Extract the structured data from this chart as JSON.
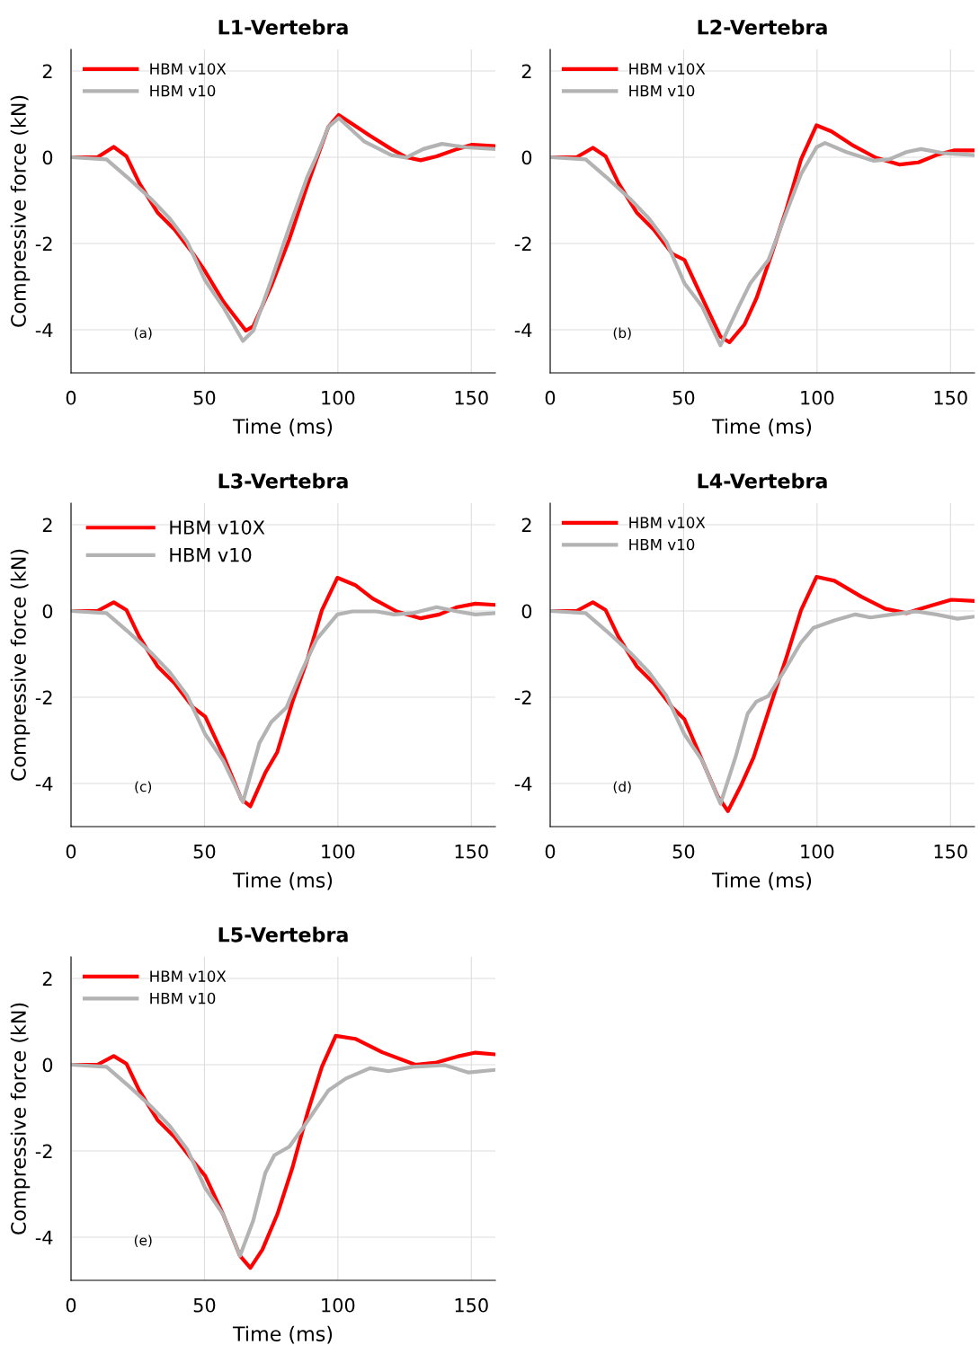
{
  "chart_data": [
    {
      "type": "line",
      "title": "L1-Vertebra",
      "xlabel": "Time (ms)",
      "ylabel": "Compressive force (kN)",
      "xlim": [
        0,
        159
      ],
      "ylim": [
        -5,
        2.5
      ],
      "xticks": [
        0,
        50,
        100,
        150
      ],
      "yticks": [
        -4,
        -2,
        0,
        2
      ],
      "grid": true,
      "legend": "top left",
      "annotations": [
        "(a)"
      ],
      "series": [
        {
          "name": "HBM v10X",
          "color": "#ff0000",
          "x": [
            0,
            9.9,
            16,
            20.8,
            25.6,
            32.4,
            39,
            45.8,
            50.3,
            57,
            65.5,
            68.3,
            75,
            81.8,
            88.5,
            92,
            96.4,
            100.3,
            105.4,
            112,
            120,
            125.6,
            131,
            137,
            144.7,
            150.3,
            159
          ],
          "values": [
            0,
            0,
            0.24,
            0.02,
            -0.6,
            -1.28,
            -1.69,
            -2.24,
            -2.65,
            -3.34,
            -4.02,
            -3.92,
            -2.99,
            -1.9,
            -0.66,
            -0.05,
            0.7,
            0.98,
            0.77,
            0.5,
            0.19,
            0,
            -0.07,
            0.02,
            0.19,
            0.29,
            0.26
          ]
        },
        {
          "name": "HBM v10",
          "color": "#b3b3b3",
          "x": [
            0,
            13.3,
            21,
            30,
            37,
            43.6,
            50.3,
            57,
            64.4,
            68.3,
            75,
            81.8,
            88.5,
            92,
            96.4,
            100.3,
            110,
            120,
            125.6,
            132,
            139,
            148,
            159
          ],
          "values": [
            0,
            -0.05,
            -0.46,
            -0.97,
            -1.42,
            -1.97,
            -2.86,
            -3.47,
            -4.26,
            -4.02,
            -2.86,
            -1.62,
            -0.46,
            0.02,
            0.7,
            0.91,
            0.36,
            0.05,
            -0.01,
            0.19,
            0.31,
            0.23,
            0.19
          ]
        }
      ]
    },
    {
      "type": "line",
      "title": "L2-Vertebra",
      "xlabel": "Time (ms)",
      "xlim": [
        0,
        159
      ],
      "ylim": [
        -5,
        2.5
      ],
      "xticks": [
        0,
        50,
        100,
        150
      ],
      "yticks": [
        -4,
        -2,
        0,
        2
      ],
      "grid": true,
      "legend": "top left",
      "annotations": [
        "(b)"
      ],
      "series": [
        {
          "name": "HBM v10X",
          "color": "#ff0000",
          "x": [
            0,
            9.9,
            16,
            20.8,
            25.6,
            32.4,
            39,
            45.8,
            50.3,
            57,
            63.8,
            67.2,
            72.8,
            77.3,
            83,
            88.5,
            94,
            99.8,
            105.4,
            113,
            122,
            131,
            138,
            144.7,
            151.5,
            159
          ],
          "values": [
            0,
            0,
            0.22,
            0.02,
            -0.6,
            -1.28,
            -1.69,
            -2.24,
            -2.38,
            -3.27,
            -4.16,
            -4.29,
            -3.88,
            -3.27,
            -2.24,
            -1.21,
            -0.05,
            0.74,
            0.6,
            0.29,
            -0.01,
            -0.17,
            -0.12,
            0.05,
            0.16,
            0.16
          ]
        },
        {
          "name": "HBM v10",
          "color": "#b3b3b3",
          "x": [
            0,
            13.3,
            21,
            30,
            37,
            43.6,
            50.3,
            57,
            63.8,
            70.6,
            75,
            81.8,
            88.5,
            94,
            99.8,
            103,
            111,
            121,
            127,
            133.5,
            139,
            148,
            159
          ],
          "values": [
            0,
            -0.05,
            -0.46,
            -0.97,
            -1.42,
            -1.97,
            -2.92,
            -3.47,
            -4.36,
            -3.47,
            -2.92,
            -2.38,
            -1.28,
            -0.39,
            0.23,
            0.33,
            0.12,
            -0.08,
            -0.05,
            0.12,
            0.19,
            0.09,
            0.05
          ]
        }
      ]
    },
    {
      "type": "line",
      "title": "L3-Vertebra",
      "xlabel": "Time (ms)",
      "ylabel": "Compressive force (kN)",
      "xlim": [
        0,
        159
      ],
      "ylim": [
        -5,
        2.5
      ],
      "xticks": [
        0,
        50,
        100,
        150
      ],
      "yticks": [
        -4,
        -2,
        0,
        2
      ],
      "grid": true,
      "legend": "top left",
      "annotations": [
        "(c)"
      ],
      "series": [
        {
          "name": "HBM v10X",
          "color": "#ff0000",
          "x": [
            0,
            9.9,
            16,
            20.8,
            25.6,
            32.4,
            39,
            45.8,
            50.3,
            57,
            63.8,
            67.2,
            72.8,
            77.3,
            83,
            88.5,
            94,
            99.8,
            106.5,
            113,
            122,
            131,
            138,
            144.7,
            151.5,
            159
          ],
          "values": [
            0,
            0,
            0.2,
            0.02,
            -0.6,
            -1.28,
            -1.69,
            -2.24,
            -2.45,
            -3.34,
            -4.36,
            -4.53,
            -3.75,
            -3.27,
            -2.1,
            -1.14,
            0.02,
            0.77,
            0.6,
            0.29,
            -0.01,
            -0.17,
            -0.08,
            0.09,
            0.17,
            0.14
          ]
        },
        {
          "name": "HBM v10",
          "color": "#b3b3b3",
          "x": [
            0,
            13.3,
            21,
            30,
            37,
            43.6,
            50.3,
            57,
            64.4,
            70.6,
            75,
            80.7,
            86.3,
            92,
            99.8,
            105.4,
            114.4,
            121,
            128,
            137,
            144.7,
            151.5,
            159
          ],
          "values": [
            0,
            -0.05,
            -0.46,
            -0.97,
            -1.42,
            -1.97,
            -2.86,
            -3.47,
            -4.43,
            -3.06,
            -2.58,
            -2.24,
            -1.42,
            -0.66,
            -0.08,
            -0.01,
            -0.01,
            -0.08,
            -0.05,
            0.09,
            -0.01,
            -0.08,
            -0.05
          ]
        }
      ]
    },
    {
      "type": "line",
      "title": "L4-Vertebra",
      "xlabel": "Time (ms)",
      "xlim": [
        0,
        159
      ],
      "ylim": [
        -5,
        2.5
      ],
      "xticks": [
        0,
        50,
        100,
        150
      ],
      "yticks": [
        -4,
        -2,
        0,
        2
      ],
      "grid": true,
      "legend": "top left",
      "annotations": [
        "(d)"
      ],
      "series": [
        {
          "name": "HBM v10X",
          "color": "#ff0000",
          "x": [
            0,
            9.9,
            16,
            20.8,
            25.6,
            32.4,
            39,
            45.8,
            50.3,
            57,
            62.7,
            66.6,
            71.7,
            76.2,
            83,
            88.5,
            94,
            99.8,
            106.5,
            116.6,
            125.6,
            133.5,
            142.5,
            150.3,
            159
          ],
          "values": [
            0,
            0,
            0.2,
            0.02,
            -0.6,
            -1.28,
            -1.69,
            -2.24,
            -2.51,
            -3.47,
            -4.29,
            -4.64,
            -4.02,
            -3.4,
            -2.1,
            -1.08,
            0.02,
            0.79,
            0.7,
            0.33,
            0.05,
            -0.05,
            0.12,
            0.26,
            0.23
          ]
        },
        {
          "name": "HBM v10",
          "color": "#b3b3b3",
          "x": [
            0,
            13.3,
            21,
            30,
            37,
            43.6,
            50.3,
            57,
            63.8,
            69.4,
            74,
            77.3,
            81.8,
            87.4,
            94,
            98.7,
            106.5,
            114.4,
            120,
            128,
            137,
            144.7,
            152.6,
            159
          ],
          "values": [
            0,
            -0.05,
            -0.46,
            -0.97,
            -1.42,
            -1.97,
            -2.86,
            -3.47,
            -4.47,
            -3.4,
            -2.38,
            -2.1,
            -1.97,
            -1.42,
            -0.73,
            -0.39,
            -0.22,
            -0.08,
            -0.15,
            -0.08,
            -0.01,
            -0.08,
            -0.18,
            -0.13
          ]
        }
      ]
    },
    {
      "type": "line",
      "title": "L5-Vertebra",
      "xlabel": "Time (ms)",
      "ylabel": "Compressive force (kN)",
      "xlim": [
        0,
        159
      ],
      "ylim": [
        -5,
        2.5
      ],
      "xticks": [
        0,
        50,
        100,
        150
      ],
      "yticks": [
        -4,
        -2,
        0,
        2
      ],
      "grid": true,
      "legend": "top left",
      "annotations": [
        "(e)"
      ],
      "series": [
        {
          "name": "HBM v10X",
          "color": "#ff0000",
          "x": [
            0,
            9.9,
            16,
            20.8,
            25.6,
            32.4,
            39,
            45.8,
            50.3,
            57,
            63.3,
            67.2,
            71.7,
            77.3,
            83,
            88.5,
            94,
            99.2,
            106.5,
            116.6,
            129,
            137,
            144.7,
            151.5,
            159
          ],
          "values": [
            0,
            0,
            0.2,
            0.02,
            -0.6,
            -1.28,
            -1.69,
            -2.24,
            -2.58,
            -3.47,
            -4.43,
            -4.71,
            -4.29,
            -3.47,
            -2.38,
            -1.14,
            -0.05,
            0.67,
            0.6,
            0.29,
            0,
            0.05,
            0.19,
            0.28,
            0.24
          ]
        },
        {
          "name": "HBM v10",
          "color": "#b3b3b3",
          "x": [
            0,
            13.3,
            21,
            30,
            37,
            43.6,
            50.3,
            57,
            63.3,
            68.3,
            72.8,
            76.2,
            81.8,
            87.4,
            96.4,
            103,
            112,
            119,
            128,
            140,
            149,
            159
          ],
          "values": [
            0,
            -0.05,
            -0.46,
            -0.97,
            -1.42,
            -1.97,
            -2.86,
            -3.47,
            -4.43,
            -3.61,
            -2.51,
            -2.1,
            -1.9,
            -1.42,
            -0.6,
            -0.32,
            -0.08,
            -0.15,
            -0.05,
            -0.01,
            -0.18,
            -0.12
          ]
        }
      ]
    }
  ]
}
